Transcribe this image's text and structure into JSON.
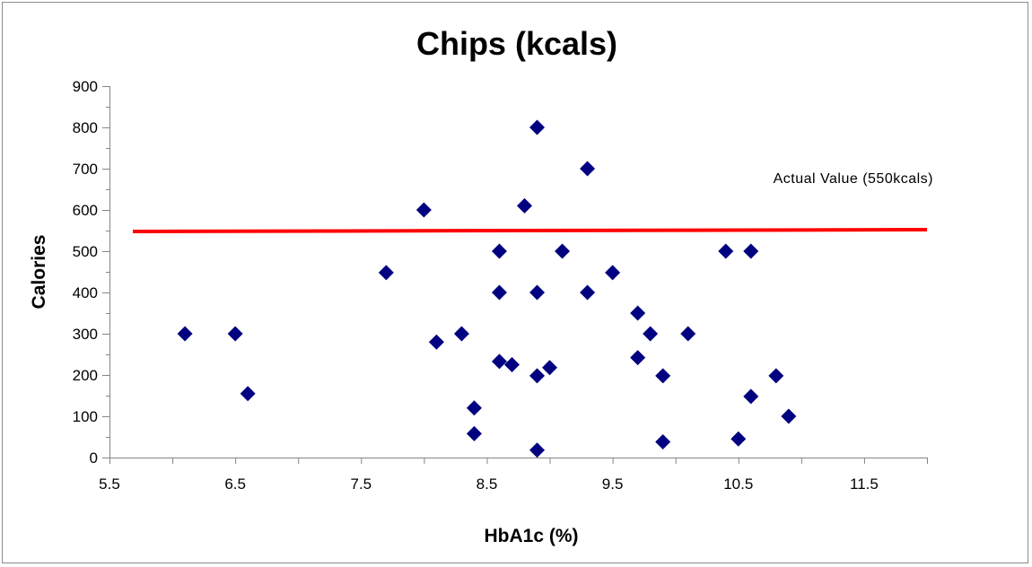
{
  "chart_data": {
    "type": "scatter",
    "title": "Chips (kcals)",
    "xlabel": "HbA1c (%)",
    "ylabel": "Calories",
    "xlim": [
      5.5,
      12.0
    ],
    "ylim": [
      0,
      900
    ],
    "xticks": [
      "5.5",
      "6.5",
      "7.5",
      "8.5",
      "9.5",
      "10.5",
      "11.5"
    ],
    "xtick_values": [
      5.5,
      6.5,
      7.5,
      8.5,
      9.5,
      10.5,
      11.5
    ],
    "yticks": [
      "0",
      "100",
      "200",
      "300",
      "400",
      "500",
      "600",
      "700",
      "800",
      "900"
    ],
    "ytick_values": [
      0,
      100,
      200,
      300,
      400,
      500,
      600,
      700,
      800,
      900
    ],
    "grid": false,
    "marker_color": "#000080",
    "reference_line": {
      "y": 550,
      "color": "#ff0000",
      "label": "Actual Value (550kcals)"
    },
    "points": [
      {
        "x": 6.1,
        "y": 300
      },
      {
        "x": 6.5,
        "y": 300
      },
      {
        "x": 6.6,
        "y": 155
      },
      {
        "x": 7.7,
        "y": 448
      },
      {
        "x": 8.0,
        "y": 600
      },
      {
        "x": 8.1,
        "y": 280
      },
      {
        "x": 8.3,
        "y": 300
      },
      {
        "x": 8.4,
        "y": 120
      },
      {
        "x": 8.4,
        "y": 58
      },
      {
        "x": 8.6,
        "y": 500
      },
      {
        "x": 8.6,
        "y": 400
      },
      {
        "x": 8.6,
        "y": 233
      },
      {
        "x": 8.7,
        "y": 225
      },
      {
        "x": 8.8,
        "y": 610
      },
      {
        "x": 8.9,
        "y": 800
      },
      {
        "x": 8.9,
        "y": 400
      },
      {
        "x": 8.9,
        "y": 198
      },
      {
        "x": 8.9,
        "y": 18
      },
      {
        "x": 9.0,
        "y": 218
      },
      {
        "x": 9.1,
        "y": 500
      },
      {
        "x": 9.3,
        "y": 700
      },
      {
        "x": 9.3,
        "y": 400
      },
      {
        "x": 9.5,
        "y": 448
      },
      {
        "x": 9.7,
        "y": 350
      },
      {
        "x": 9.7,
        "y": 242
      },
      {
        "x": 9.8,
        "y": 300
      },
      {
        "x": 9.9,
        "y": 198
      },
      {
        "x": 9.9,
        "y": 38
      },
      {
        "x": 10.1,
        "y": 300
      },
      {
        "x": 10.4,
        "y": 500
      },
      {
        "x": 10.5,
        "y": 45
      },
      {
        "x": 10.6,
        "y": 500
      },
      {
        "x": 10.6,
        "y": 148
      },
      {
        "x": 10.8,
        "y": 198
      },
      {
        "x": 10.9,
        "y": 100
      }
    ]
  }
}
